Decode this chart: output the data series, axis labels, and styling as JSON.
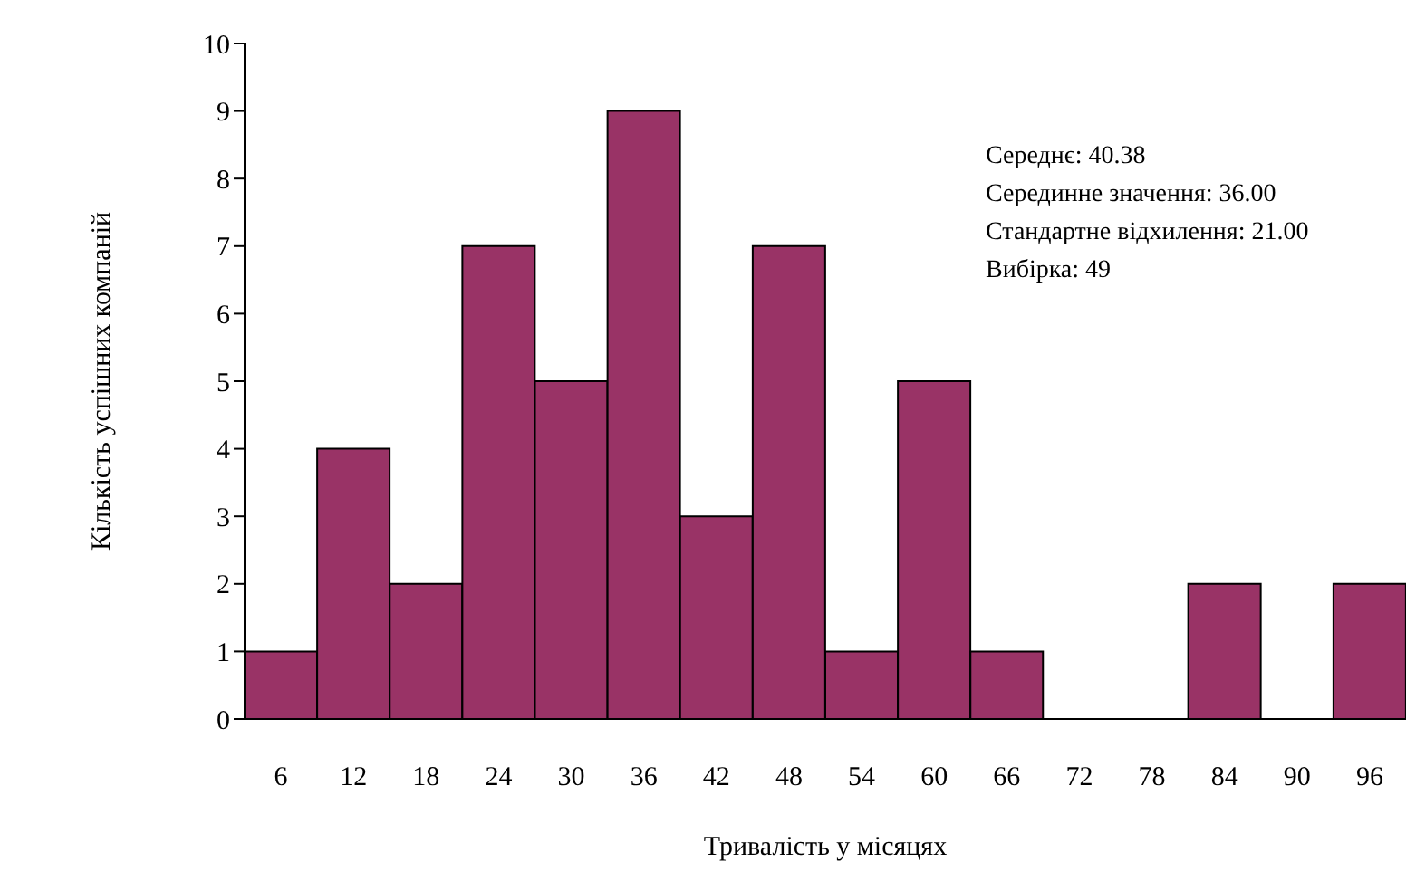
{
  "chart_data": {
    "type": "bar",
    "xlabel": "Тривалість у місяцях",
    "ylabel": "Кількість успішних компаній",
    "categories": [
      "6",
      "12",
      "18",
      "24",
      "30",
      "36",
      "42",
      "48",
      "54",
      "60",
      "66",
      "72",
      "78",
      "84",
      "90",
      "96"
    ],
    "values": [
      1,
      4,
      2,
      7,
      5,
      9,
      3,
      7,
      1,
      5,
      1,
      0,
      0,
      2,
      0,
      2
    ],
    "color": "#993366",
    "ylim": [
      0,
      10
    ],
    "yticks": [
      0,
      1,
      2,
      3,
      4,
      5,
      6,
      7,
      8,
      9,
      10
    ],
    "grid": false,
    "legend": false,
    "annotations": [
      "Середнє: 40.38",
      "Серединне значення: 36.00",
      "Стандартне відхилення: 21.00",
      "Вибірка: 49"
    ]
  }
}
